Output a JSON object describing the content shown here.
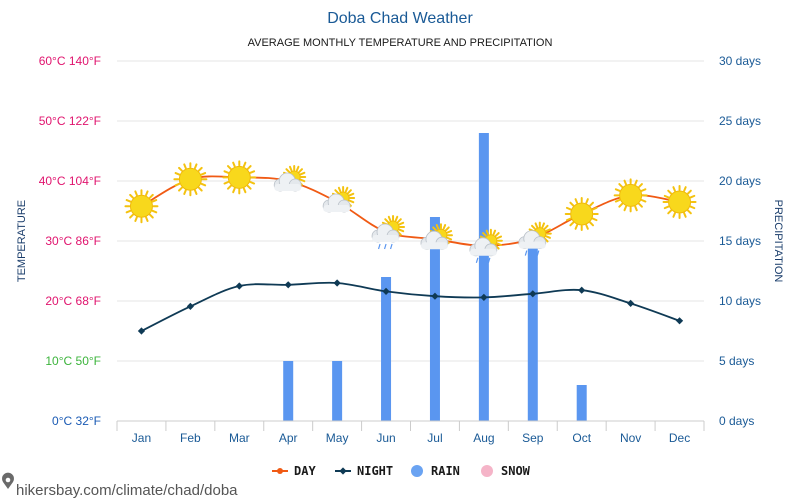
{
  "chart_data": {
    "type": "line",
    "title": "Doba Chad Weather",
    "subtitle": "AVERAGE MONTHLY TEMPERATURE AND PRECIPITATION",
    "ylabel_left": "TEMPERATURE",
    "ylabel_right": "PRECIPITATION",
    "categories": [
      "Jan",
      "Feb",
      "Mar",
      "Apr",
      "May",
      "Jun",
      "Jul",
      "Aug",
      "Sep",
      "Oct",
      "Nov",
      "Dec"
    ],
    "left_axis": {
      "ylim": [
        0,
        60
      ],
      "ticks": [
        {
          "value": 0,
          "celsius": "0°C",
          "fahrenheit": "32°F",
          "color": "#1a5ab4"
        },
        {
          "value": 10,
          "celsius": "10°C",
          "fahrenheit": "50°F",
          "color": "#3cb43c"
        },
        {
          "value": 20,
          "celsius": "20°C",
          "fahrenheit": "68°F",
          "color": "#e0146e"
        },
        {
          "value": 30,
          "celsius": "30°C",
          "fahrenheit": "86°F",
          "color": "#e0146e"
        },
        {
          "value": 40,
          "celsius": "40°C",
          "fahrenheit": "104°F",
          "color": "#e0146e"
        },
        {
          "value": 50,
          "celsius": "50°C",
          "fahrenheit": "122°F",
          "color": "#e0146e"
        },
        {
          "value": 60,
          "celsius": "60°C",
          "fahrenheit": "140°F",
          "color": "#e0146e"
        }
      ]
    },
    "right_axis": {
      "ylim": [
        0,
        30
      ],
      "ticks": [
        {
          "value": 0,
          "label": "0 days"
        },
        {
          "value": 5,
          "label": "5 days"
        },
        {
          "value": 10,
          "label": "10 days"
        },
        {
          "value": 15,
          "label": "15 days"
        },
        {
          "value": 20,
          "label": "20 days"
        },
        {
          "value": 25,
          "label": "25 days"
        },
        {
          "value": 30,
          "label": "30 days"
        }
      ]
    },
    "series": [
      {
        "name": "DAY",
        "type": "line",
        "axis": "left",
        "color": "#f05a14",
        "values": [
          35.8,
          40.3,
          40.6,
          40.0,
          36.5,
          31.5,
          30.3,
          29.2,
          30.4,
          34.5,
          37.6,
          36.5
        ]
      },
      {
        "name": "NIGHT",
        "type": "line",
        "axis": "left",
        "color": "#0f3a55",
        "values": [
          15.0,
          19.1,
          22.5,
          22.7,
          23.0,
          21.6,
          20.8,
          20.6,
          21.2,
          21.8,
          19.6,
          16.7
        ]
      },
      {
        "name": "RAIN",
        "type": "bar",
        "axis": "right",
        "color": "#5a96f0",
        "values": [
          0,
          0,
          0,
          5,
          5,
          12,
          17,
          24,
          15,
          3,
          0,
          0
        ]
      },
      {
        "name": "SNOW",
        "type": "bar",
        "axis": "right",
        "color": "#f5b4c8",
        "values": [
          0,
          0,
          0,
          0,
          0,
          0,
          0,
          0,
          0,
          0,
          0,
          0
        ]
      }
    ],
    "weather_icons": [
      "sun-icon",
      "sun-icon",
      "sun-icon",
      "partly-cloudy-icon",
      "partly-cloudy-icon",
      "rain-cloud-icon",
      "partly-cloudy-icon",
      "rain-cloud-icon",
      "rain-cloud-icon",
      "sun-icon",
      "sun-icon",
      "sun-icon"
    ],
    "legend": {
      "placement": "bottom-center",
      "items": [
        "DAY",
        "NIGHT",
        "RAIN",
        "SNOW"
      ]
    },
    "grid": true
  },
  "footer": {
    "text": "hikersbay.com/climate/chad/doba"
  }
}
